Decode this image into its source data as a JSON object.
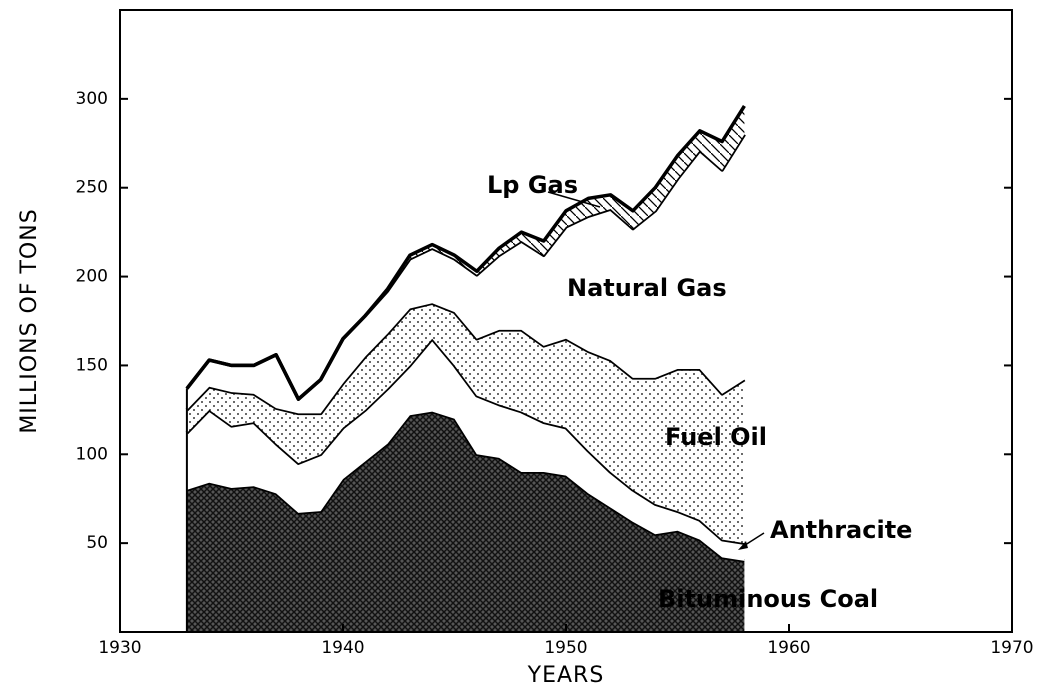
{
  "chart_data": {
    "type": "stacked_area",
    "y_label": "MILLIONS OF TONS",
    "x_label": "YEARS",
    "x": [
      1933,
      1934,
      1935,
      1936,
      1937,
      1938,
      1939,
      1940,
      1941,
      1942,
      1943,
      1944,
      1945,
      1946,
      1947,
      1948,
      1949,
      1950,
      1951,
      1952,
      1953,
      1954,
      1955,
      1956,
      1957,
      1958
    ],
    "series": [
      {
        "name": "Bituminous Coal",
        "color": "#000000",
        "fill": "crosshatch",
        "values": [
          80,
          84,
          81,
          82,
          78,
          67,
          68,
          86,
          96,
          106,
          122,
          124,
          120,
          100,
          98,
          90,
          90,
          88,
          78,
          70,
          62,
          55,
          57,
          52,
          42,
          40
        ]
      },
      {
        "name": "Anthracite",
        "color": "#000000",
        "fill": "white",
        "values": [
          32,
          41,
          35,
          36,
          28,
          28,
          32,
          29,
          29,
          31,
          28,
          41,
          30,
          33,
          30,
          34,
          28,
          27,
          24,
          20,
          18,
          17,
          11,
          11,
          10,
          10
        ]
      },
      {
        "name": "Fuel Oil",
        "color": "#000000",
        "fill": "dots",
        "values": [
          13,
          13,
          19,
          16,
          20,
          28,
          23,
          25,
          30,
          31,
          32,
          20,
          30,
          32,
          42,
          46,
          43,
          50,
          56,
          63,
          63,
          71,
          80,
          85,
          82,
          92
        ]
      },
      {
        "name": "Natural Gas",
        "color": "#000000",
        "fill": "white",
        "values": [
          12,
          15,
          15,
          16,
          30,
          8,
          19,
          25,
          23,
          24,
          28,
          31,
          30,
          36,
          42,
          50,
          51,
          63,
          76,
          85,
          84,
          94,
          107,
          123,
          126,
          138
        ]
      },
      {
        "name": "Lp Gas",
        "color": "#000000",
        "fill": "hatch",
        "values": [
          0,
          0,
          0,
          0,
          0,
          0,
          0,
          0,
          0,
          1,
          2,
          2,
          2,
          2,
          4,
          5,
          8,
          9,
          10,
          8,
          10,
          13,
          13,
          11,
          16,
          16
        ]
      }
    ],
    "xlim": [
      1930,
      1970
    ],
    "xticks": [
      1930,
      1940,
      1950,
      1960,
      1970
    ],
    "ylim": [
      0,
      350
    ],
    "yticks": [
      50,
      100,
      150,
      200,
      250,
      300
    ]
  }
}
